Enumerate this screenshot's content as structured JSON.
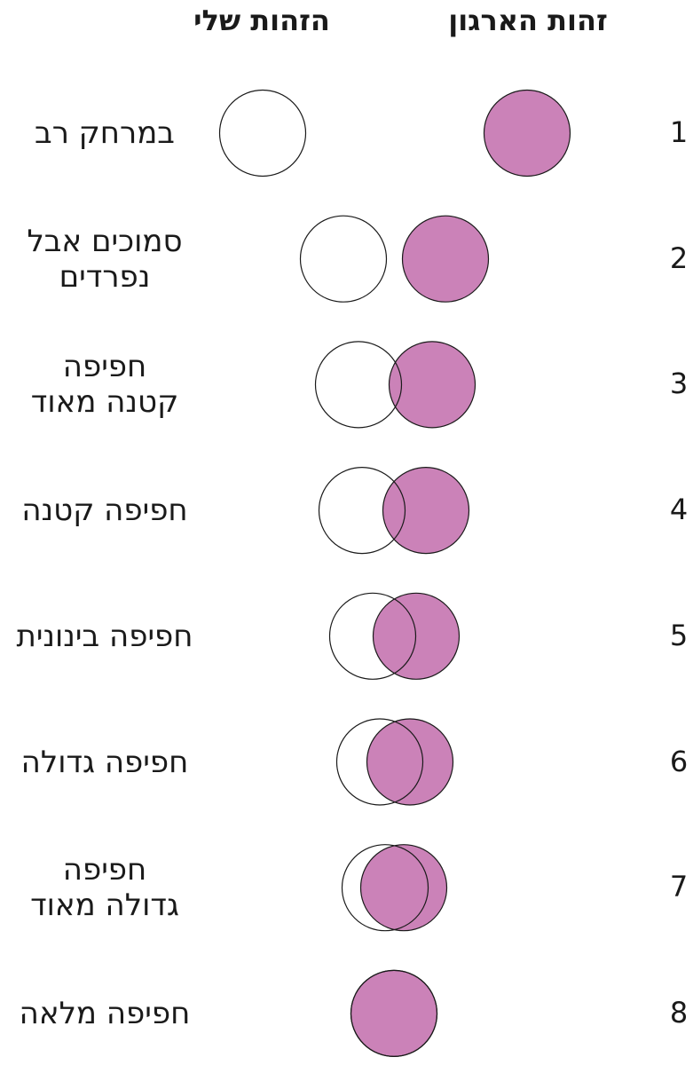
{
  "header": {
    "org_identity": "זהות הארגון",
    "my_identity": "הזהות שלי"
  },
  "rows": [
    {
      "number": 1,
      "label": [
        "במרחק רב"
      ]
    },
    {
      "number": 2,
      "label": [
        "סמוכים אבל",
        "נפרדים"
      ]
    },
    {
      "number": 3,
      "label": [
        "חפיפה",
        "קטנה מאוד"
      ]
    },
    {
      "number": 4,
      "label": [
        "חפיפה קטנה"
      ]
    },
    {
      "number": 5,
      "label": [
        "חפיפה בינונית"
      ]
    },
    {
      "number": 6,
      "label": [
        "חפיפה גדולה"
      ]
    },
    {
      "number": 7,
      "label": [
        "חפיפה",
        "גדולה מאוד"
      ]
    },
    {
      "number": 8,
      "label": [
        "חפיפה מלאה"
      ]
    }
  ]
}
